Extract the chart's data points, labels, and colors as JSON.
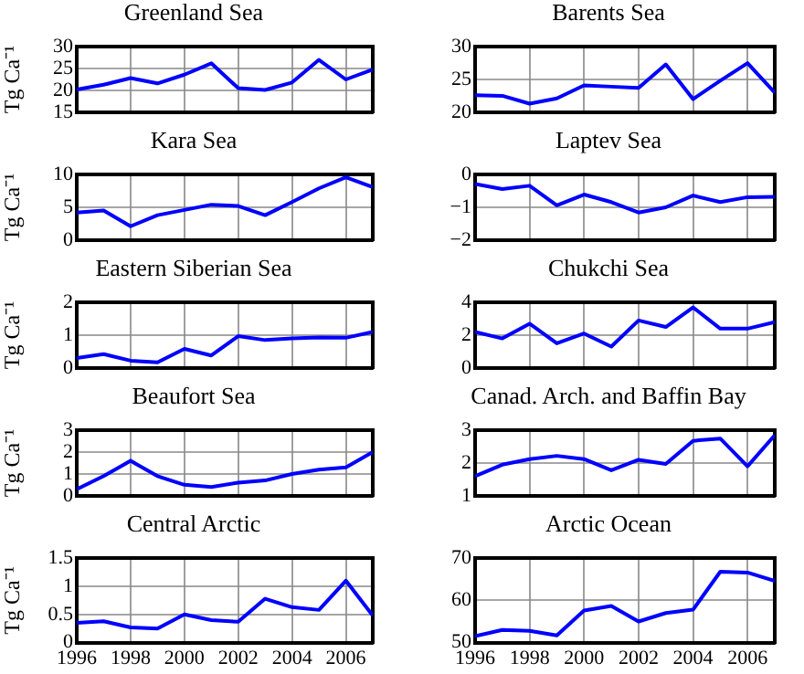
{
  "chart_data": [
    {
      "type": "line",
      "title": "Greenland Sea",
      "ylabel": "Tg Ca⁻¹",
      "x": [
        1996,
        1997,
        1998,
        1999,
        2000,
        2001,
        2002,
        2003,
        2004,
        2005,
        2006,
        2007
      ],
      "series": [
        {
          "color": "#0000ff",
          "values": [
            20.2,
            21.3,
            22.8,
            21.6,
            23.6,
            26.2,
            20.5,
            20.1,
            21.8,
            27.0,
            22.5,
            24.8
          ]
        }
      ],
      "xlim": [
        1996,
        2007
      ],
      "xticks": [
        1996,
        1998,
        2000,
        2002,
        2004,
        2006
      ],
      "ylim": [
        15,
        30
      ],
      "yticks": [
        15,
        20,
        25,
        30
      ],
      "grid": true,
      "tick_labels": "y"
    },
    {
      "type": "line",
      "title": "Barents Sea",
      "x": [
        1996,
        1997,
        1998,
        1999,
        2000,
        2001,
        2002,
        2003,
        2004,
        2005,
        2006,
        2007
      ],
      "series": [
        {
          "color": "#0000ff",
          "values": [
            22.6,
            22.5,
            21.3,
            22.1,
            24.1,
            23.9,
            23.7,
            27.3,
            22.0,
            24.8,
            27.5,
            23.0
          ]
        }
      ],
      "xlim": [
        1996,
        2007
      ],
      "xticks": [
        1996,
        1998,
        2000,
        2002,
        2004,
        2006
      ],
      "ylim": [
        20,
        30
      ],
      "yticks": [
        20,
        25,
        30
      ],
      "grid": true,
      "tick_labels": "y"
    },
    {
      "type": "line",
      "title": "Kara Sea",
      "ylabel": "Tg Ca⁻¹",
      "x": [
        1996,
        1997,
        1998,
        1999,
        2000,
        2001,
        2002,
        2003,
        2004,
        2005,
        2006,
        2007
      ],
      "series": [
        {
          "color": "#0000ff",
          "values": [
            4.2,
            4.5,
            2.1,
            3.8,
            4.6,
            5.4,
            5.2,
            3.8,
            5.8,
            7.9,
            9.6,
            8.1
          ]
        }
      ],
      "xlim": [
        1996,
        2007
      ],
      "xticks": [
        1996,
        1998,
        2000,
        2002,
        2004,
        2006
      ],
      "ylim": [
        0,
        10
      ],
      "yticks": [
        0,
        5,
        10
      ],
      "grid": true,
      "tick_labels": "y"
    },
    {
      "type": "line",
      "title": "Laptev Sea",
      "x": [
        1996,
        1997,
        1998,
        1999,
        2000,
        2001,
        2002,
        2003,
        2004,
        2005,
        2006,
        2007
      ],
      "series": [
        {
          "color": "#0000ff",
          "values": [
            -0.29,
            -0.44,
            -0.34,
            -0.94,
            -0.61,
            -0.84,
            -1.16,
            -1.0,
            -0.64,
            -0.84,
            -0.69,
            -0.68
          ]
        }
      ],
      "xlim": [
        1996,
        2007
      ],
      "xticks": [
        1996,
        1998,
        2000,
        2002,
        2004,
        2006
      ],
      "ylim": [
        -2,
        0
      ],
      "yticks": [
        {
          "value": -2,
          "label": "−2"
        },
        {
          "value": -1,
          "label": "−1"
        },
        0
      ],
      "grid": true,
      "tick_labels": "y"
    },
    {
      "type": "line",
      "title": "Eastern Siberian Sea",
      "ylabel": "Tg Ca⁻¹",
      "x": [
        1996,
        1997,
        1998,
        1999,
        2000,
        2001,
        2002,
        2003,
        2004,
        2005,
        2006,
        2007
      ],
      "series": [
        {
          "color": "#0000ff",
          "values": [
            0.3,
            0.42,
            0.22,
            0.17,
            0.58,
            0.38,
            0.97,
            0.85,
            0.9,
            0.93,
            0.92,
            1.1
          ]
        }
      ],
      "xlim": [
        1996,
        2007
      ],
      "xticks": [
        1996,
        1998,
        2000,
        2002,
        2004,
        2006
      ],
      "ylim": [
        0,
        2
      ],
      "yticks": [
        0,
        1,
        2
      ],
      "grid": true,
      "tick_labels": "y"
    },
    {
      "type": "line",
      "title": "Chukchi Sea",
      "x": [
        1996,
        1997,
        1998,
        1999,
        2000,
        2001,
        2002,
        2003,
        2004,
        2005,
        2006,
        2007
      ],
      "series": [
        {
          "color": "#0000ff",
          "values": [
            2.2,
            1.8,
            2.7,
            1.5,
            2.1,
            1.3,
            2.9,
            2.5,
            3.7,
            2.4,
            2.4,
            2.8
          ]
        }
      ],
      "xlim": [
        1996,
        2007
      ],
      "xticks": [
        1996,
        1998,
        2000,
        2002,
        2004,
        2006
      ],
      "ylim": [
        0,
        4
      ],
      "yticks": [
        0,
        2,
        4
      ],
      "grid": true,
      "tick_labels": "y"
    },
    {
      "type": "line",
      "title": "Beaufort Sea",
      "ylabel": "Tg Ca⁻¹",
      "x": [
        1996,
        1997,
        1998,
        1999,
        2000,
        2001,
        2002,
        2003,
        2004,
        2005,
        2006,
        2007
      ],
      "series": [
        {
          "color": "#0000ff",
          "values": [
            0.3,
            0.9,
            1.6,
            0.9,
            0.5,
            0.4,
            0.6,
            0.7,
            1.0,
            1.2,
            1.3,
            2.0
          ]
        }
      ],
      "xlim": [
        1996,
        2007
      ],
      "xticks": [
        1996,
        1998,
        2000,
        2002,
        2004,
        2006
      ],
      "ylim": [
        0,
        3
      ],
      "yticks": [
        0,
        1,
        2,
        3
      ],
      "grid": true,
      "tick_labels": "y"
    },
    {
      "type": "line",
      "title": "Canad. Arch. and Baffin Bay",
      "x": [
        1996,
        1997,
        1998,
        1999,
        2000,
        2001,
        2002,
        2003,
        2004,
        2005,
        2006,
        2007
      ],
      "series": [
        {
          "color": "#0000ff",
          "values": [
            1.6,
            1.95,
            2.12,
            2.22,
            2.12,
            1.78,
            2.1,
            1.97,
            2.68,
            2.75,
            1.9,
            2.85
          ]
        }
      ],
      "xlim": [
        1996,
        2007
      ],
      "xticks": [
        1996,
        1998,
        2000,
        2002,
        2004,
        2006
      ],
      "ylim": [
        1,
        3
      ],
      "yticks": [
        1,
        2,
        3
      ],
      "grid": true,
      "tick_labels": "y"
    },
    {
      "type": "line",
      "title": "Central Arctic",
      "ylabel": "Tg Ca⁻¹",
      "x": [
        1996,
        1997,
        1998,
        1999,
        2000,
        2001,
        2002,
        2003,
        2004,
        2005,
        2006,
        2007
      ],
      "series": [
        {
          "color": "#0000ff",
          "values": [
            0.35,
            0.38,
            0.27,
            0.25,
            0.5,
            0.4,
            0.37,
            0.78,
            0.63,
            0.58,
            1.1,
            0.48
          ]
        }
      ],
      "xlim": [
        1996,
        2007
      ],
      "xticks": [
        1996,
        1998,
        2000,
        2002,
        2004,
        2006
      ],
      "ylim": [
        0,
        1.5
      ],
      "yticks": [
        0,
        0.5,
        1,
        1.5
      ],
      "grid": true
    },
    {
      "type": "line",
      "title": "Arctic Ocean",
      "x": [
        1996,
        1997,
        1998,
        1999,
        2000,
        2001,
        2002,
        2003,
        2004,
        2005,
        2006,
        2007
      ],
      "series": [
        {
          "color": "#0000ff",
          "values": [
            51.5,
            53.0,
            52.8,
            51.7,
            57.6,
            58.7,
            55.0,
            57.0,
            57.8,
            66.8,
            66.6,
            64.6
          ]
        }
      ],
      "xlim": [
        1996,
        2007
      ],
      "xticks": [
        1996,
        1998,
        2000,
        2002,
        2004,
        2006
      ],
      "ylim": [
        50,
        70
      ],
      "yticks": [
        50,
        60,
        70
      ],
      "grid": true
    }
  ]
}
